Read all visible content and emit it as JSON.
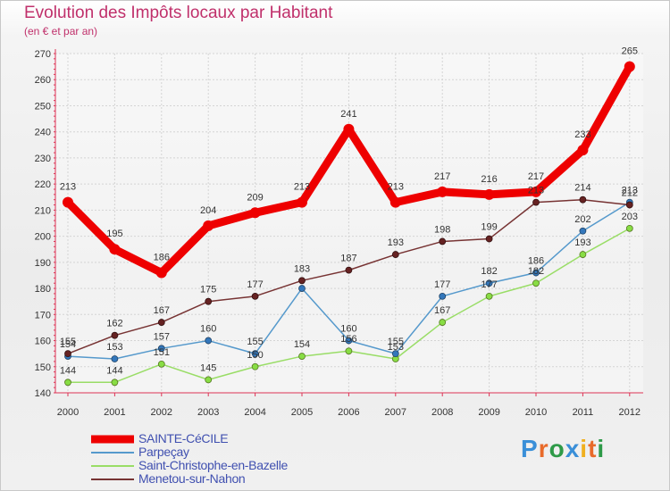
{
  "title": "Evolution des Impôts locaux par Habitant",
  "subtitle": "(en € et par an)",
  "logo": {
    "text": "Proxiti",
    "letters": [
      {
        "ch": "P",
        "color": "#3a8fd8"
      },
      {
        "ch": "r",
        "color": "#e86a2a"
      },
      {
        "ch": "o",
        "color": "#2e9a48"
      },
      {
        "ch": "x",
        "color": "#3a8fd8"
      },
      {
        "ch": "i",
        "color": "#f0b020"
      },
      {
        "ch": "t",
        "color": "#e86a2a"
      },
      {
        "ch": "i",
        "color": "#2e9a48"
      }
    ]
  },
  "chart_data": {
    "type": "line",
    "title": "Evolution des Impôts locaux par Habitant",
    "subtitle": "(en € et par an)",
    "x": [
      "2000",
      "2001",
      "2002",
      "2003",
      "2004",
      "2005",
      "2006",
      "2007",
      "2008",
      "2009",
      "2010",
      "2011",
      "2012"
    ],
    "ylim": [
      140,
      270
    ],
    "yticks": [
      140,
      150,
      160,
      170,
      180,
      190,
      200,
      210,
      220,
      230,
      240,
      250,
      260,
      270
    ],
    "grid": true,
    "legend": "bottom-left",
    "series": [
      {
        "name": "SAINTE-CéCILE",
        "color": "#ee0000",
        "values": [
          213,
          195,
          186,
          204,
          209,
          213,
          241,
          213,
          217,
          216,
          217,
          233,
          265
        ],
        "labels": [
          "213",
          "195",
          "186",
          "204",
          "209",
          "213",
          "241",
          "213",
          "217",
          "216",
          "217",
          "233",
          "265"
        ]
      },
      {
        "name": "Parpeçay",
        "color": "#5599cc",
        "values": [
          154,
          153,
          157,
          160,
          155,
          180,
          160,
          155,
          177,
          182,
          186,
          202,
          213
        ],
        "labels": [
          "154",
          "153",
          "157",
          "160",
          "155",
          "",
          "160",
          "155",
          "177",
          "182",
          "186",
          "202",
          "213"
        ]
      },
      {
        "name": "Saint-Christophe-en-Bazelle",
        "color": "#99dd66",
        "values": [
          144,
          144,
          151,
          145,
          150,
          154,
          156,
          153,
          167,
          177,
          182,
          193,
          203
        ],
        "labels": [
          "144",
          "144",
          "151",
          "145",
          "150",
          "154",
          "156",
          "153",
          "167",
          "177",
          "182",
          "193",
          "203"
        ]
      },
      {
        "name": "Menetou-sur-Nahon",
        "color": "#773333",
        "values": [
          155,
          162,
          167,
          175,
          177,
          183,
          187,
          193,
          198,
          199,
          213,
          214,
          212
        ],
        "labels": [
          "155",
          "162",
          "167",
          "175",
          "177",
          "183",
          "187",
          "193",
          "198",
          "199",
          "213",
          "214",
          "212"
        ]
      }
    ]
  }
}
